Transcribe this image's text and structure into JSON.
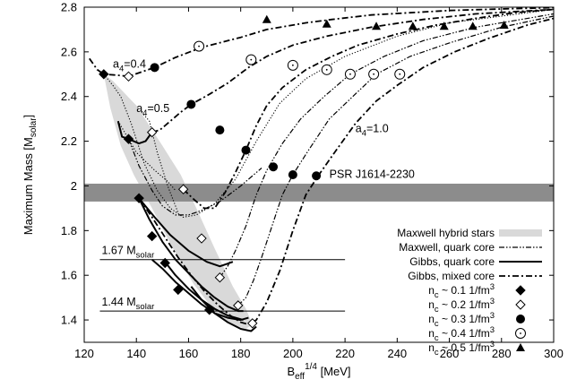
{
  "chart_data": {
    "type": "line",
    "title": "",
    "xlabel": "B_eff^1/4 [MeV]",
    "xlabel_parts": {
      "base": "B",
      "sub": "eff",
      "sup": "1/4",
      "unit": " [MeV]"
    },
    "ylabel": "Maximum Mass [M_solar]",
    "ylabel_parts": {
      "main": "Maximum Mass [M",
      "sub": "solar",
      "end": "]"
    },
    "xlim": [
      120,
      300
    ],
    "ylim": [
      1.3,
      2.8
    ],
    "xticks": [
      120,
      140,
      160,
      180,
      200,
      220,
      240,
      260,
      280,
      300
    ],
    "yticks": [
      "1.4",
      "1.6",
      "1.8",
      "2",
      "2.2",
      "2.4",
      "2.6",
      "2.8"
    ],
    "yticks_values": [
      1.4,
      1.6,
      1.8,
      2.0,
      2.2,
      2.4,
      2.6,
      2.8
    ],
    "grid": false,
    "legend_position": "bottom-right",
    "legend": [
      {
        "label": "Maxwell hybrid stars",
        "style": "shaded-band"
      },
      {
        "label": "Maxwell, quark core",
        "style": "dash-dot-dot"
      },
      {
        "label": "Gibbs, quark core",
        "style": "solid"
      },
      {
        "label": "Gibbs, mixed core",
        "style": "dash-dot"
      },
      {
        "label": "n_c ~ 0.1 1/fm^3",
        "prefix": "n",
        "sub": "c",
        "mid": " ~ 0.1 1/fm",
        "sup": "3",
        "marker": "filled-diamond"
      },
      {
        "label": "n_c ~ 0.2 1/fm^3",
        "prefix": "n",
        "sub": "c",
        "mid": " ~ 0.2 1/fm",
        "sup": "3",
        "marker": "open-diamond"
      },
      {
        "label": "n_c ~ 0.3 1/fm^3",
        "prefix": "n",
        "sub": "c",
        "mid": " ~ 0.3 1/fm",
        "sup": "3",
        "marker": "filled-circle"
      },
      {
        "label": "n_c ~ 0.4 1/fm^3",
        "prefix": "n",
        "sub": "c",
        "mid": " ~ 0.4 1/fm",
        "sup": "3",
        "marker": "open-circle"
      },
      {
        "label": "n_c ~ 0.5 1/fm^3",
        "prefix": "n",
        "sub": "c",
        "mid": " ~ 0.5 1/fm",
        "sup": "3",
        "marker": "filled-triangle"
      }
    ],
    "psr_band": {
      "label": "PSR J1614-2230",
      "y_range": [
        1.93,
        2.01
      ],
      "color": "#8c8c8c"
    },
    "hlines": [
      {
        "label_main": "1.67 M",
        "label_sub": "solar",
        "y": 1.67,
        "x_range": [
          126,
          220
        ]
      },
      {
        "label_main": "1.44 M",
        "label_sub": "solar",
        "y": 1.44,
        "x_range": [
          126,
          220
        ]
      }
    ],
    "curve_labels": [
      {
        "main": "a",
        "sub": "4",
        "tail": "=0.4",
        "x": 131,
        "y": 2.53
      },
      {
        "main": "a",
        "sub": "4",
        "tail": "=0.5",
        "x": 140,
        "y": 2.33
      },
      {
        "main": "a",
        "sub": "4",
        "tail": "=1.0",
        "x": 224,
        "y": 2.24
      }
    ],
    "maxwell_band": {
      "color": "#d9d9d9",
      "upper": [
        [
          127.5,
          2.5
        ],
        [
          131,
          2.47
        ],
        [
          140,
          2.36
        ],
        [
          150,
          2.18
        ],
        [
          157,
          2.05
        ],
        [
          163,
          1.9
        ],
        [
          170,
          1.72
        ],
        [
          177,
          1.55
        ],
        [
          182,
          1.45
        ],
        [
          184.5,
          1.38
        ]
      ],
      "lower": [
        [
          184.5,
          1.38
        ],
        [
          182,
          1.36
        ],
        [
          176,
          1.38
        ],
        [
          170,
          1.44
        ],
        [
          162,
          1.56
        ],
        [
          154,
          1.72
        ],
        [
          146,
          1.9
        ],
        [
          139,
          2.05
        ],
        [
          134,
          2.18
        ],
        [
          130,
          2.35
        ],
        [
          127.5,
          2.5
        ]
      ]
    },
    "series": [
      {
        "style": "dash-dot",
        "points": [
          [
            122,
            2.57
          ],
          [
            125,
            2.52
          ],
          [
            127.5,
            2.5
          ],
          [
            133,
            2.495
          ],
          [
            137,
            2.49
          ],
          [
            142,
            2.51
          ],
          [
            147,
            2.53
          ],
          [
            155,
            2.575
          ],
          [
            165,
            2.62
          ],
          [
            180,
            2.665
          ],
          [
            190,
            2.7
          ],
          [
            205,
            2.73
          ],
          [
            215,
            2.745
          ],
          [
            230,
            2.765
          ],
          [
            245,
            2.775
          ],
          [
            260,
            2.785
          ],
          [
            280,
            2.792
          ],
          [
            300,
            2.798
          ]
        ]
      },
      {
        "style": "dotted",
        "points": [
          [
            127.5,
            2.5
          ],
          [
            131,
            2.45
          ],
          [
            134,
            2.4
          ],
          [
            138,
            2.28
          ],
          [
            143,
            2.1
          ],
          [
            148,
            1.98
          ],
          [
            153,
            1.9
          ],
          [
            158,
            1.86
          ],
          [
            163,
            1.87
          ],
          [
            170,
            1.92
          ],
          [
            178,
            2.03
          ],
          [
            186,
            2.2
          ],
          [
            195,
            2.37
          ],
          [
            205,
            2.48
          ],
          [
            220,
            2.58
          ],
          [
            240,
            2.67
          ],
          [
            260,
            2.73
          ],
          [
            300,
            2.79
          ]
        ]
      },
      {
        "style": "dotted",
        "points": [
          [
            133,
            2.29
          ],
          [
            136,
            2.23
          ],
          [
            140,
            2.15
          ],
          [
            147,
            2.07
          ],
          [
            152,
            2.02
          ],
          [
            155,
            1.98
          ]
        ]
      },
      {
        "style": "dotted",
        "points": [
          [
            142,
            2.33
          ],
          [
            145,
            2.29
          ],
          [
            148,
            2.15
          ],
          [
            152,
            2.0
          ],
          [
            156,
            1.88
          ]
        ]
      },
      {
        "style": "solid",
        "points": [
          [
            133,
            2.29
          ],
          [
            134.5,
            2.22
          ],
          [
            137,
            2.21
          ],
          [
            141,
            2.19
          ],
          [
            143.5,
            2.2
          ],
          [
            146,
            2.24
          ]
        ]
      },
      {
        "style": "dash-dot-dot",
        "points": [
          [
            137,
            2.21
          ],
          [
            141,
            2.09
          ],
          [
            146,
            1.98
          ],
          [
            150,
            1.91
          ],
          [
            155,
            1.87
          ],
          [
            160,
            1.87
          ],
          [
            165,
            1.89
          ],
          [
            172,
            1.93
          ],
          [
            180,
            2.0
          ],
          [
            188,
            2.08
          ]
        ]
      },
      {
        "style": "solid",
        "points": [
          [
            141,
            1.945
          ],
          [
            147,
            1.86
          ],
          [
            153,
            1.78
          ],
          [
            160,
            1.71
          ],
          [
            167,
            1.66
          ],
          [
            172,
            1.64
          ],
          [
            177,
            1.66
          ]
        ]
      },
      {
        "style": "dash-dot",
        "points": [
          [
            146,
            2.24
          ],
          [
            149,
            2.25
          ],
          [
            153,
            2.29
          ],
          [
            157,
            2.33
          ],
          [
            161,
            2.365
          ],
          [
            168,
            2.41
          ],
          [
            175,
            2.46
          ],
          [
            183,
            2.53
          ],
          [
            190,
            2.58
          ],
          [
            200,
            2.63
          ],
          [
            213,
            2.67
          ],
          [
            230,
            2.71
          ],
          [
            250,
            2.745
          ],
          [
            270,
            2.77
          ],
          [
            300,
            2.79
          ]
        ]
      },
      {
        "style": "solid",
        "points": [
          [
            146,
            1.67
          ],
          [
            150,
            1.63
          ],
          [
            155,
            1.57
          ],
          [
            160,
            1.52
          ],
          [
            165,
            1.47
          ],
          [
            170,
            1.43
          ],
          [
            175,
            1.41
          ],
          [
            180,
            1.4
          ],
          [
            183,
            1.41
          ]
        ]
      },
      {
        "style": "dash-dot",
        "points": [
          [
            158,
            1.985
          ],
          [
            162,
            1.94
          ],
          [
            166,
            1.9
          ],
          [
            170,
            1.9
          ],
          [
            174,
            1.97
          ],
          [
            178,
            2.06
          ],
          [
            182,
            2.16
          ],
          [
            186,
            2.27
          ],
          [
            190,
            2.36
          ],
          [
            196,
            2.44
          ],
          [
            205,
            2.52
          ],
          [
            215,
            2.58
          ],
          [
            225,
            2.63
          ],
          [
            240,
            2.68
          ],
          [
            255,
            2.72
          ],
          [
            270,
            2.75
          ],
          [
            285,
            2.775
          ],
          [
            300,
            2.79
          ]
        ]
      },
      {
        "style": "solid",
        "points": [
          [
            141,
            1.945
          ],
          [
            145,
            1.85
          ],
          [
            150,
            1.75
          ],
          [
            155,
            1.67
          ],
          [
            160,
            1.61
          ],
          [
            165,
            1.55
          ],
          [
            170,
            1.5
          ],
          [
            175,
            1.46
          ],
          [
            179,
            1.44
          ],
          [
            181,
            1.44
          ]
        ]
      },
      {
        "style": "dash-dot-dot",
        "points": [
          [
            172,
            1.59
          ],
          [
            175,
            1.64
          ],
          [
            178,
            1.71
          ],
          [
            182,
            1.82
          ],
          [
            186,
            1.96
          ],
          [
            190,
            2.07
          ],
          [
            196,
            2.19
          ],
          [
            203,
            2.3
          ],
          [
            212,
            2.4
          ],
          [
            222,
            2.5
          ],
          [
            235,
            2.58
          ],
          [
            250,
            2.65
          ],
          [
            270,
            2.71
          ],
          [
            300,
            2.77
          ]
        ]
      },
      {
        "style": "solid",
        "points": [
          [
            151,
            1.66
          ],
          [
            155,
            1.6
          ],
          [
            160,
            1.54
          ],
          [
            165,
            1.49
          ],
          [
            170,
            1.45
          ],
          [
            175,
            1.42
          ],
          [
            181,
            1.4
          ]
        ]
      },
      {
        "style": "dash-dot-dot",
        "points": [
          [
            179,
            1.465
          ],
          [
            182,
            1.5
          ],
          [
            185,
            1.58
          ],
          [
            188,
            1.68
          ],
          [
            192,
            1.82
          ],
          [
            196,
            1.96
          ],
          [
            200,
            2.05
          ],
          [
            206,
            2.16
          ],
          [
            214,
            2.3
          ],
          [
            223,
            2.4
          ],
          [
            232,
            2.5
          ],
          [
            245,
            2.58
          ],
          [
            260,
            2.64
          ],
          [
            280,
            2.71
          ],
          [
            300,
            2.76
          ]
        ]
      },
      {
        "style": "dash-dot",
        "points": [
          [
            141,
            1.945
          ],
          [
            146,
            1.86
          ],
          [
            151,
            1.77
          ],
          [
            156,
            1.68
          ],
          [
            161,
            1.6
          ],
          [
            166,
            1.53
          ],
          [
            171,
            1.47
          ],
          [
            176,
            1.42
          ],
          [
            180,
            1.39
          ],
          [
            183,
            1.38
          ],
          [
            186,
            1.4
          ],
          [
            190,
            1.48
          ],
          [
            195,
            1.62
          ],
          [
            200,
            1.8
          ],
          [
            205,
            1.96
          ],
          [
            210,
            2.05
          ],
          [
            216,
            2.15
          ],
          [
            224,
            2.28
          ],
          [
            232,
            2.38
          ],
          [
            240,
            2.45
          ],
          [
            250,
            2.53
          ],
          [
            262,
            2.6
          ],
          [
            275,
            2.66
          ],
          [
            290,
            2.72
          ],
          [
            300,
            2.75
          ]
        ]
      },
      {
        "style": "solid",
        "points": [
          [
            161,
            1.55
          ],
          [
            165,
            1.49
          ],
          [
            170,
            1.43
          ],
          [
            175,
            1.39
          ],
          [
            180,
            1.36
          ],
          [
            184,
            1.35
          ],
          [
            186,
            1.37
          ]
        ]
      }
    ],
    "markers": {
      "filled-diamond": [
        [
          127.5,
          2.5
        ],
        [
          137,
          2.21
        ],
        [
          141,
          1.945
        ],
        [
          146,
          1.775
        ],
        [
          151,
          1.655
        ],
        [
          156,
          1.535
        ],
        [
          168,
          1.445
        ]
      ],
      "open-diamond": [
        [
          137,
          2.49
        ],
        [
          146,
          2.24
        ],
        [
          158,
          1.985
        ],
        [
          165,
          1.765
        ],
        [
          172,
          1.59
        ],
        [
          179,
          1.465
        ],
        [
          184.5,
          1.385
        ]
      ],
      "filled-circle": [
        [
          147,
          2.53
        ],
        [
          161,
          2.365
        ],
        [
          172,
          2.25
        ],
        [
          182,
          2.16
        ],
        [
          192.5,
          2.085
        ],
        [
          200,
          2.05
        ],
        [
          209,
          2.045
        ]
      ],
      "open-circle": [
        [
          164,
          2.625
        ],
        [
          184,
          2.565
        ],
        [
          200,
          2.54
        ],
        [
          213,
          2.52
        ],
        [
          222,
          2.5
        ],
        [
          231,
          2.5
        ],
        [
          241,
          2.5
        ]
      ],
      "filled-triangle": [
        [
          190,
          2.745
        ],
        [
          213,
          2.725
        ],
        [
          232,
          2.715
        ],
        [
          246,
          2.715
        ],
        [
          258,
          2.715
        ],
        [
          269,
          2.715
        ],
        [
          281,
          2.72
        ]
      ]
    }
  }
}
